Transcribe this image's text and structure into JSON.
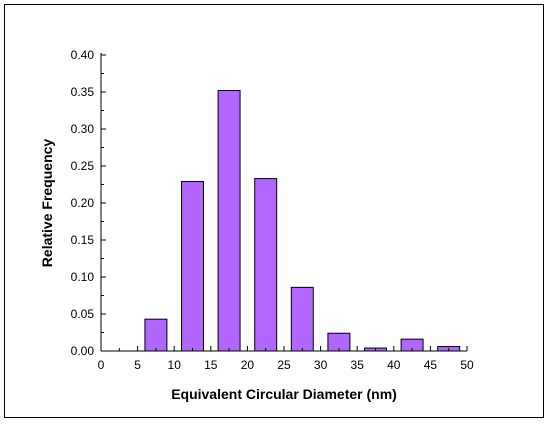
{
  "chart_data": {
    "type": "bar",
    "title": "",
    "xlabel": "Equivalent Circular Diameter (nm)",
    "ylabel": "Relative Frequency",
    "xlim": [
      0,
      50
    ],
    "ylim": [
      0,
      0.4
    ],
    "x_ticks": [
      0,
      5,
      10,
      15,
      20,
      25,
      30,
      35,
      40,
      45,
      50
    ],
    "y_ticks": [
      "0.00",
      "0.05",
      "0.10",
      "0.15",
      "0.20",
      "0.25",
      "0.30",
      "0.35",
      "0.40"
    ],
    "grid": false,
    "legend": "none",
    "bar_color": "#b066ff",
    "bins": [
      {
        "center": 7.5,
        "value": 0.043
      },
      {
        "center": 12.5,
        "value": 0.229
      },
      {
        "center": 17.5,
        "value": 0.352
      },
      {
        "center": 22.5,
        "value": 0.233
      },
      {
        "center": 27.5,
        "value": 0.086
      },
      {
        "center": 32.5,
        "value": 0.024
      },
      {
        "center": 37.5,
        "value": 0.004
      },
      {
        "center": 42.5,
        "value": 0.016
      },
      {
        "center": 47.5,
        "value": 0.006
      }
    ],
    "bin_width_data": 3
  }
}
